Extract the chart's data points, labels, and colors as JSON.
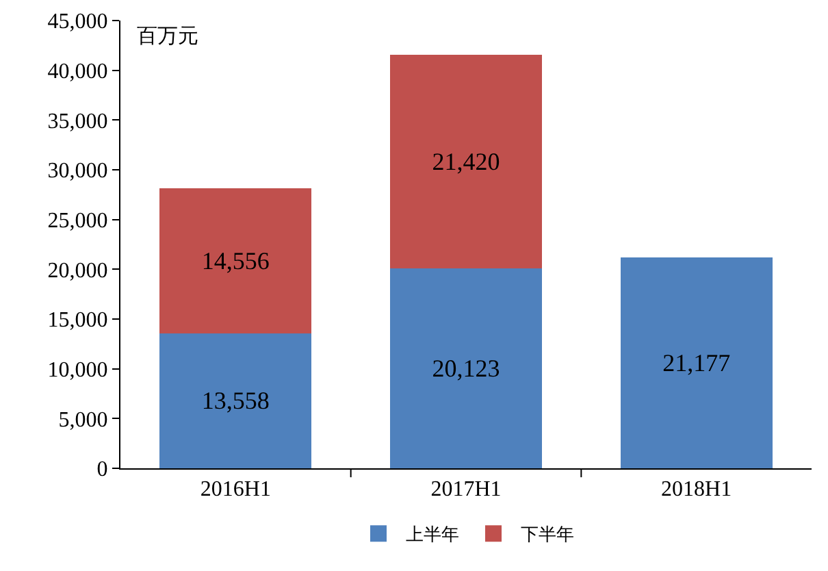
{
  "chart_data": {
    "type": "bar",
    "stacked": true,
    "ylabel": "百万元",
    "categories": [
      "2016H1",
      "2017H1",
      "2018H1"
    ],
    "series": [
      {
        "name": "上半年",
        "color": "#4f81bd",
        "values": [
          13558,
          20123,
          21177
        ],
        "value_labels": [
          "13,558",
          "20,123",
          "21,177"
        ]
      },
      {
        "name": "下半年",
        "color": "#c0504d",
        "values": [
          14556,
          21420,
          null
        ],
        "value_labels": [
          "14,556",
          "21,420",
          null
        ]
      }
    ],
    "ylim": [
      0,
      45000
    ],
    "yticks": [
      0,
      {
        "value": 5000,
        "label": "5,000"
      },
      {
        "value": 10000,
        "label": "10,000"
      },
      {
        "value": 15000,
        "label": "15,000"
      },
      {
        "value": 20000,
        "label": "20,000"
      },
      {
        "value": 25000,
        "label": "25,000"
      },
      {
        "value": 30000,
        "label": "30,000"
      },
      {
        "value": 35000,
        "label": "35,000"
      },
      {
        "value": 40000,
        "label": "40,000"
      },
      {
        "value": 45000,
        "label": "45,000"
      }
    ],
    "grid": false,
    "legend": "bottom"
  }
}
